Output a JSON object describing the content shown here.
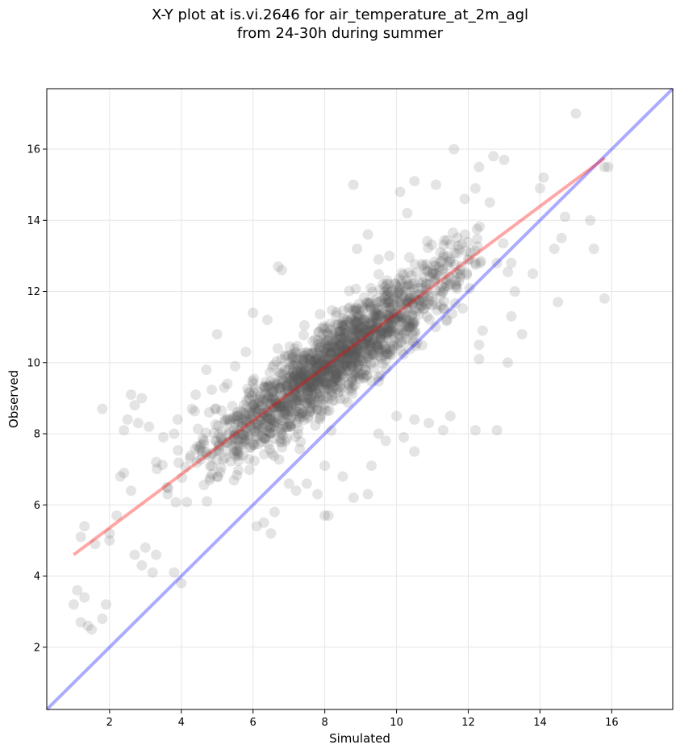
{
  "title_line1": "X-Y plot at is.vi.2646 for air_temperature_at_2m_agl",
  "title_line2": "from 24-30h during summer",
  "chart_data": {
    "type": "scatter",
    "xlabel": "Simulated",
    "ylabel": "Observed",
    "xlim": [
      0.25,
      17.7
    ],
    "ylim": [
      0.25,
      17.7
    ],
    "xticks": [
      2,
      4,
      6,
      8,
      10,
      12,
      14,
      16
    ],
    "yticks": [
      2,
      4,
      6,
      8,
      10,
      12,
      14,
      16
    ],
    "grid": true,
    "point_color": "#555555",
    "point_opacity": 0.16,
    "points_visible_approx": 1800,
    "fit_line": {
      "color": "#ff0000",
      "opacity": 0.35,
      "x": [
        1.0,
        15.8
      ],
      "y": [
        4.6,
        15.75
      ]
    },
    "identity_line": {
      "color": "#0000ff",
      "opacity": 0.33,
      "x": [
        0.25,
        17.7
      ],
      "y": [
        0.25,
        17.7
      ]
    },
    "points": [
      [
        1.0,
        3.2
      ],
      [
        1.1,
        3.6
      ],
      [
        1.2,
        2.7
      ],
      [
        1.3,
        3.4
      ],
      [
        1.4,
        2.6
      ],
      [
        1.5,
        2.5
      ],
      [
        1.8,
        2.8
      ],
      [
        1.9,
        3.2
      ],
      [
        1.2,
        5.1
      ],
      [
        1.3,
        5.4
      ],
      [
        1.6,
        4.9
      ],
      [
        1.8,
        8.7
      ],
      [
        2.0,
        5.2
      ],
      [
        2.3,
        6.8
      ],
      [
        2.4,
        8.1
      ],
      [
        2.5,
        8.4
      ],
      [
        2.6,
        9.1
      ],
      [
        2.7,
        8.8
      ],
      [
        2.9,
        9.0
      ],
      [
        2.8,
        8.3
      ],
      [
        2.4,
        6.9
      ],
      [
        2.6,
        6.4
      ],
      [
        2.2,
        5.7
      ],
      [
        2.0,
        5.0
      ],
      [
        2.7,
        4.6
      ],
      [
        2.9,
        4.3
      ],
      [
        3.0,
        4.8
      ],
      [
        3.2,
        4.1
      ],
      [
        3.3,
        4.6
      ],
      [
        3.1,
        8.2
      ],
      [
        3.3,
        7.2
      ],
      [
        3.5,
        7.9
      ],
      [
        3.6,
        6.5
      ],
      [
        3.8,
        8.0
      ],
      [
        3.9,
        8.4
      ],
      [
        3.8,
        4.1
      ],
      [
        4.0,
        3.8
      ],
      [
        4.3,
        8.7
      ],
      [
        4.4,
        9.1
      ],
      [
        4.7,
        9.8
      ],
      [
        5.0,
        10.8
      ],
      [
        5.2,
        9.3
      ],
      [
        5.5,
        9.9
      ],
      [
        5.8,
        10.3
      ],
      [
        6.0,
        11.4
      ],
      [
        6.4,
        11.2
      ],
      [
        6.7,
        12.7
      ],
      [
        6.8,
        12.6
      ],
      [
        6.1,
        5.4
      ],
      [
        6.3,
        5.5
      ],
      [
        6.5,
        5.2
      ],
      [
        6.6,
        5.8
      ],
      [
        7.0,
        6.6
      ],
      [
        7.2,
        6.4
      ],
      [
        7.5,
        6.6
      ],
      [
        7.8,
        6.3
      ],
      [
        8.0,
        5.7
      ],
      [
        8.1,
        5.7
      ],
      [
        8.0,
        7.1
      ],
      [
        8.5,
        6.8
      ],
      [
        8.8,
        6.2
      ],
      [
        9.2,
        6.3
      ],
      [
        9.3,
        7.1
      ],
      [
        9.5,
        8.0
      ],
      [
        8.8,
        15.0
      ],
      [
        8.9,
        13.2
      ],
      [
        9.2,
        13.6
      ],
      [
        9.5,
        12.9
      ],
      [
        9.8,
        13.0
      ],
      [
        9.7,
        7.8
      ],
      [
        10.0,
        8.5
      ],
      [
        10.2,
        7.9
      ],
      [
        10.5,
        7.5
      ],
      [
        10.5,
        8.4
      ],
      [
        10.9,
        8.3
      ],
      [
        11.3,
        8.1
      ],
      [
        11.5,
        8.5
      ],
      [
        12.2,
        8.1
      ],
      [
        12.8,
        8.1
      ],
      [
        12.4,
        10.9
      ],
      [
        12.3,
        10.5
      ],
      [
        12.3,
        10.1
      ],
      [
        12.8,
        12.8
      ],
      [
        13.2,
        12.8
      ],
      [
        13.2,
        11.3
      ],
      [
        13.1,
        10.0
      ],
      [
        13.5,
        10.8
      ],
      [
        13.3,
        12.0
      ],
      [
        13.8,
        12.5
      ],
      [
        14.0,
        14.9
      ],
      [
        14.1,
        15.2
      ],
      [
        14.4,
        13.2
      ],
      [
        14.6,
        13.5
      ],
      [
        14.7,
        14.1
      ],
      [
        14.5,
        11.7
      ],
      [
        15.0,
        17.0
      ],
      [
        15.4,
        14.0
      ],
      [
        15.5,
        13.2
      ],
      [
        15.8,
        15.5
      ],
      [
        15.8,
        11.8
      ],
      [
        15.9,
        15.5
      ],
      [
        13.0,
        15.7
      ],
      [
        12.7,
        15.8
      ],
      [
        12.3,
        15.5
      ],
      [
        11.6,
        16.0
      ],
      [
        11.1,
        15.0
      ],
      [
        10.5,
        15.1
      ],
      [
        10.1,
        14.8
      ],
      [
        10.3,
        14.2
      ],
      [
        11.9,
        14.6
      ],
      [
        12.2,
        14.9
      ],
      [
        12.6,
        14.5
      ]
    ]
  }
}
